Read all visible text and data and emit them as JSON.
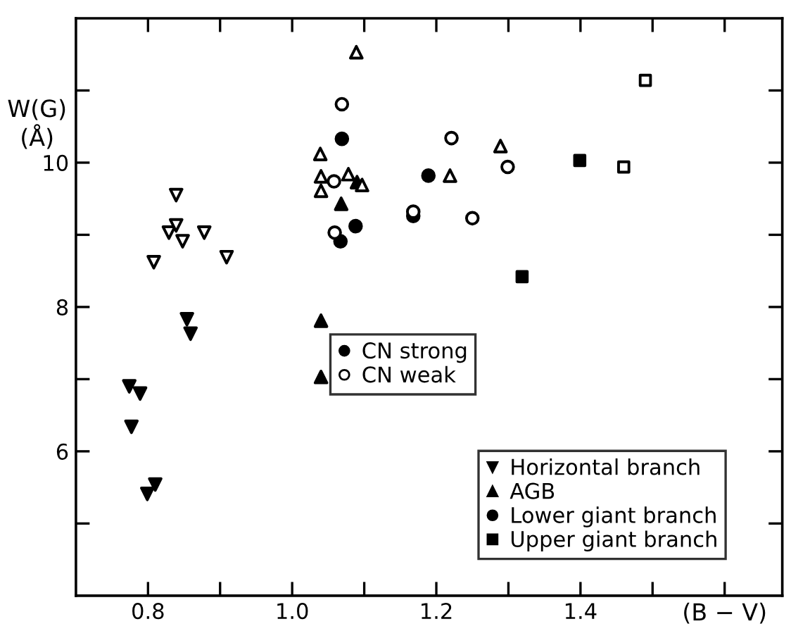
{
  "chart_data": {
    "type": "scatter",
    "xlabel": "(B − V)",
    "ylabel": "W(G)\n(Å)",
    "xlim": [
      0.7,
      1.68
    ],
    "ylim": [
      4,
      12
    ],
    "xticks": [
      0.8,
      {
        "value": 0.9,
        "label": null
      },
      {
        "value": 1.0,
        "label": "1.0"
      },
      {
        "value": 1.1,
        "label": null
      },
      1.2,
      {
        "value": 1.3,
        "label": null
      },
      1.4,
      {
        "value": 1.5,
        "label": null
      },
      {
        "value": 1.6,
        "label": null
      }
    ],
    "yticks": [
      {
        "value": 5,
        "label": null
      },
      6,
      {
        "value": 7,
        "label": null
      },
      8,
      {
        "value": 9,
        "label": null
      },
      10,
      {
        "value": 11,
        "label": null
      }
    ],
    "grid": false,
    "legend": "bottom right",
    "series": [
      {
        "name": "CN strong",
        "marker": "circle",
        "color": "#000000"
      },
      {
        "name": "CN weak",
        "marker": "circle",
        "color": "#ffffff"
      },
      {
        "name": "Horizontal branch",
        "marker": "triangle-down",
        "color": "#000000",
        "x": [
          0.774,
          0.789,
          0.777,
          0.799,
          0.81,
          0.854,
          0.859
        ],
        "values": [
          6.9,
          6.8,
          6.34,
          5.41,
          5.54,
          7.83,
          7.63
        ]
      },
      {
        "name": "AGB",
        "marker": "triangle",
        "color": "#000000",
        "x": [
          1.04,
          1.04,
          1.068,
          1.09
        ],
        "values": [
          7.81,
          7.03,
          9.43,
          9.73
        ]
      },
      {
        "name": "Lower giant branch",
        "marker": "circle",
        "color": "#000000",
        "x": [
          1.069,
          1.067,
          1.088,
          1.189,
          1.168
        ],
        "values": [
          10.33,
          8.91,
          9.12,
          9.82,
          9.26
        ]
      },
      {
        "name": "Upper giant branch",
        "marker": "square",
        "color": "#000000",
        "x": [
          1.399,
          1.319
        ],
        "values": [
          10.03,
          8.42
        ]
      },
      {
        "marker": "triangle-down",
        "color": "#ffffff",
        "x": [
          0.839,
          0.829,
          0.839,
          0.848,
          0.878,
          0.808,
          0.909
        ],
        "values": [
          9.55,
          9.03,
          9.13,
          8.91,
          9.03,
          8.62,
          8.69
        ]
      },
      {
        "marker": "triangle",
        "color": "#ffffff",
        "x": [
          1.089,
          1.039,
          1.04,
          1.04,
          1.078,
          1.097,
          1.219,
          1.289
        ],
        "values": [
          11.53,
          10.12,
          9.81,
          9.61,
          9.84,
          9.69,
          9.82,
          10.23
        ]
      },
      {
        "marker": "circle",
        "color": "#ffffff",
        "x": [
          1.069,
          1.058,
          1.059,
          1.221,
          1.299,
          1.25,
          1.168
        ],
        "values": [
          10.81,
          9.74,
          9.03,
          10.34,
          9.94,
          9.23,
          9.32
        ]
      },
      {
        "marker": "square",
        "color": "#ffffff",
        "x": [
          1.49,
          1.46
        ],
        "values": [
          11.14,
          9.94
        ]
      }
    ]
  }
}
